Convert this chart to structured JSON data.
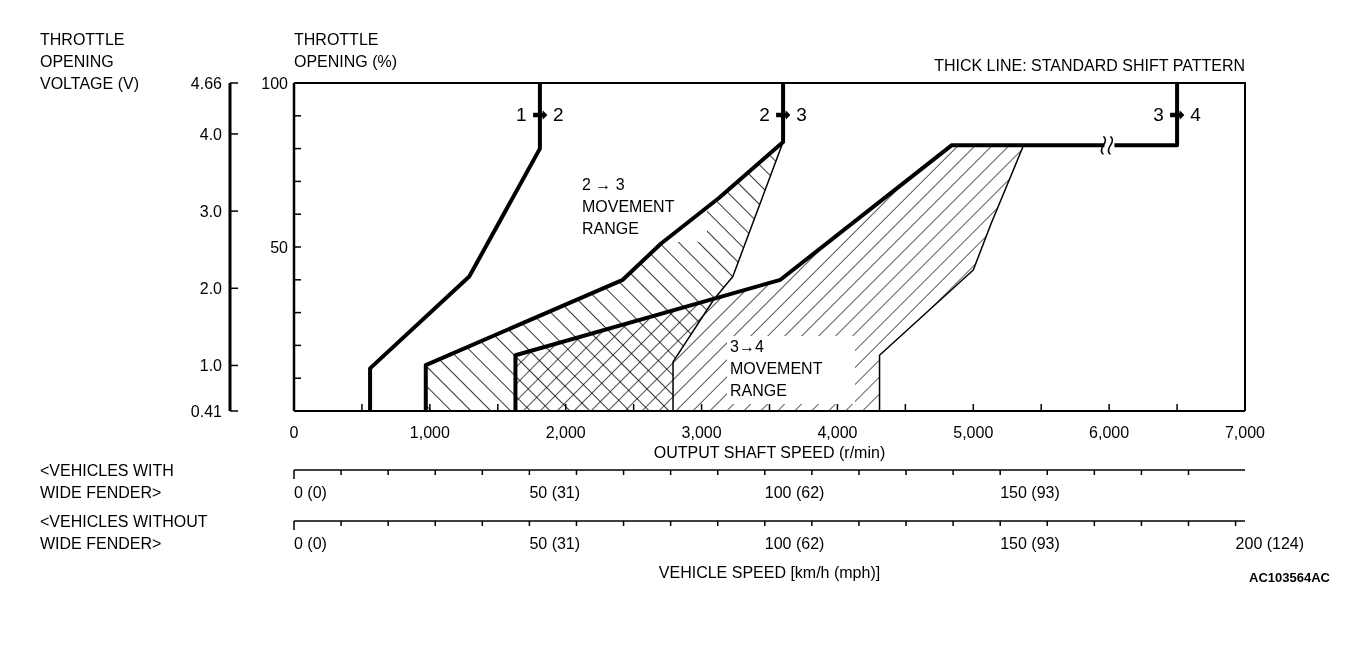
{
  "chart_data": [
    {
      "type": "line",
      "xlim": [
        0,
        7000
      ],
      "xticks": [
        0,
        {
          "value": 500,
          "label": null
        },
        {
          "value": 1000,
          "label": "1,000"
        },
        {
          "value": 1500,
          "label": null
        },
        {
          "value": 2000,
          "label": "2,000"
        },
        {
          "value": 2500,
          "label": null
        },
        {
          "value": 3000,
          "label": "3,000"
        },
        {
          "value": 3500,
          "label": null
        },
        {
          "value": 4000,
          "label": "4,000"
        },
        {
          "value": 4500,
          "label": null
        },
        {
          "value": 5000,
          "label": "5,000"
        },
        {
          "value": 5500,
          "label": null
        },
        {
          "value": 6000,
          "label": "6,000"
        },
        {
          "value": 6500,
          "label": null
        },
        {
          "value": 7000,
          "label": "7,000"
        }
      ],
      "ylim": [
        0,
        100
      ],
      "yticks": [
        {
          "value": 10,
          "label": null
        },
        {
          "value": 20,
          "label": null
        },
        {
          "value": 30,
          "label": null
        },
        {
          "value": 40,
          "label": null
        },
        50,
        {
          "value": 60,
          "label": null
        },
        {
          "value": 70,
          "label": null
        },
        {
          "value": 80,
          "label": null
        },
        {
          "value": 90,
          "label": null
        },
        100
      ],
      "y2lim": [
        0.41,
        4.66
      ],
      "y2ticks": [
        0.41,
        {
          "value": 1,
          "label": "1.0"
        },
        {
          "value": 2,
          "label": "2.0"
        },
        {
          "value": 3,
          "label": "3.0"
        },
        {
          "value": 4,
          "label": "4.0"
        },
        4.66
      ],
      "xlabel": "OUTPUT SHAFT SPEED (r/min)",
      "ylabel": "THROTTLE\nOPENING (%)",
      "y2label": "THROTTLE\nOPENING\nVOLTAGE (V)",
      "annotations": [
        "THICK LINE: STANDARD SHIFT PATTERN",
        "AC103564AC"
      ],
      "grid": false,
      "series": [
        {
          "name": "2 → 3\nMOVEMENT\nRANGE",
          "type": "area",
          "color": "#000000",
          "x": [
            970,
            970,
            2420,
            2700,
            3130,
            3600,
            3230,
            3090,
            2790,
            2790
          ],
          "values": [
            0,
            14,
            40,
            51,
            65,
            82,
            41,
            34,
            15,
            0
          ]
        },
        {
          "name": "3→4\nMOVEMENT\nRANGE",
          "type": "area",
          "color": "#000000",
          "x": [
            1630,
            1630,
            3580,
            4840,
            5370,
            5240,
            5130,
            5000,
            4310,
            4310
          ],
          "values": [
            0,
            17,
            40,
            81,
            81,
            68,
            57,
            43,
            17,
            0
          ]
        },
        {
          "name": "1 ➡ 2",
          "type": "line",
          "color": "#000000",
          "x": [
            560,
            560,
            1290,
            1810,
            1810
          ],
          "values": [
            0,
            13,
            41,
            80,
            100
          ]
        },
        {
          "name": "2 ➡ 3",
          "type": "line",
          "color": "#000000",
          "x": [
            970,
            970,
            2420,
            2700,
            3130,
            3600,
            3600
          ],
          "values": [
            0,
            14,
            40,
            51,
            65,
            82,
            100
          ]
        },
        {
          "name": "3 ➡ 4",
          "type": "line",
          "color": "#000000",
          "x": [
            1630,
            1630,
            3580,
            4840,
            6500,
            6500
          ],
          "values": [
            0,
            17,
            40,
            81,
            81,
            100
          ]
        }
      ]
    },
    {
      "type": "other",
      "ylabel": "<VEHICLES WITH\nWIDE FENDER>",
      "categories": [
        "0 (0)",
        null,
        null,
        null,
        null,
        "50 (31)",
        null,
        null,
        null,
        null,
        "100 (62)",
        null,
        null,
        null,
        null,
        "150 (93)",
        null,
        null,
        null,
        null
      ]
    },
    {
      "type": "other",
      "ylabel": "<VEHICLES WITHOUT\nWIDE FENDER>",
      "xlabel": "VEHICLE SPEED [km/h (mph)]",
      "categories": [
        "0 (0)",
        null,
        null,
        null,
        null,
        "50 (31)",
        null,
        null,
        null,
        null,
        "100 (62)",
        null,
        null,
        null,
        null,
        "150 (93)",
        null,
        null,
        null,
        null,
        "200 (124)"
      ]
    }
  ]
}
